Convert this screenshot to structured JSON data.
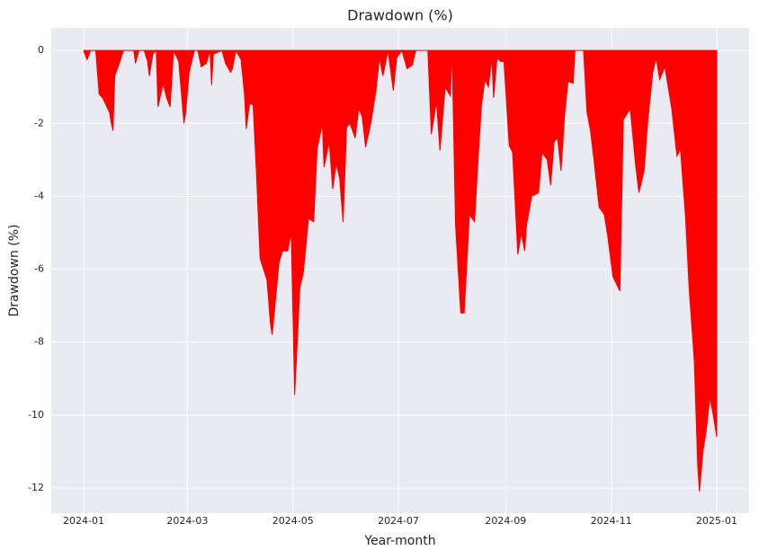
{
  "chart_data": {
    "type": "area",
    "title": "Drawdown (%)",
    "xlabel": "Year-month",
    "ylabel": "Drawdown (%)",
    "color": "#ff0000",
    "grid": true,
    "x": [
      0,
      2,
      4,
      7,
      9,
      11,
      15,
      16,
      17,
      18,
      21,
      23,
      29,
      30,
      32,
      35,
      37,
      38,
      40,
      42,
      43,
      46,
      48,
      50,
      52,
      55,
      58,
      59,
      61,
      64,
      66,
      68,
      71,
      73,
      74,
      75,
      80,
      82,
      85,
      86,
      88,
      91,
      93,
      94,
      96,
      98,
      100,
      102,
      106,
      108,
      109,
      113,
      115,
      118,
      120,
      122,
      123,
      125,
      127,
      130,
      133,
      135,
      138,
      139,
      142,
      144,
      146,
      148,
      150,
      152,
      154,
      157,
      159,
      161,
      163,
      166,
      169,
      171,
      173,
      176,
      179,
      181,
      184,
      187,
      190,
      192,
      199,
      201,
      204,
      206,
      209,
      212,
      213,
      215,
      218,
      220,
      223,
      226,
      228,
      230,
      232,
      234,
      236,
      237,
      239,
      241,
      243,
      246,
      248,
      251,
      253,
      255,
      256,
      259,
      263,
      265,
      268,
      270,
      272,
      274,
      276,
      278,
      280,
      283,
      284,
      289,
      291,
      293,
      295,
      298,
      301,
      303,
      306,
      310,
      312,
      316,
      319,
      321,
      324,
      326,
      329,
      331,
      333,
      336,
      340,
      343,
      345,
      348,
      350,
      353,
      355,
      356,
      358,
      360,
      362,
      364,
      366
    ],
    "values": [
      0,
      -0.25,
      0,
      0,
      -1.2,
      -1.3,
      -1.7,
      -2.0,
      -2.2,
      -0.7,
      -0.3,
      0,
      0,
      -0.35,
      0,
      0,
      -0.3,
      -0.7,
      -0.1,
      0,
      -1.55,
      -0.9,
      -1.3,
      -1.55,
      0,
      -0.3,
      -2.0,
      -1.7,
      -0.6,
      0,
      0,
      -0.45,
      -0.35,
      0,
      -0.95,
      -0.1,
      0,
      -0.35,
      -0.6,
      -0.5,
      0,
      -0.25,
      -1.2,
      -2.15,
      -1.45,
      -1.5,
      -3.45,
      -5.7,
      -6.3,
      -7.5,
      -7.8,
      -5.8,
      -5.5,
      -5.5,
      -5.0,
      -9.45,
      -8.5,
      -6.5,
      -6.1,
      -4.6,
      -4.7,
      -2.7,
      -2.0,
      -3.2,
      -2.5,
      -3.8,
      -3.1,
      -3.5,
      -4.7,
      -2.1,
      -2.0,
      -2.4,
      -1.6,
      -1.8,
      -2.65,
      -2.0,
      -1.1,
      -0.2,
      -0.7,
      0,
      -1.1,
      -0.2,
      0,
      -0.5,
      -0.4,
      0,
      0,
      -2.3,
      -1.4,
      -2.75,
      -1.0,
      -1.25,
      0,
      -4.8,
      -7.2,
      -7.2,
      -4.5,
      -4.7,
      -3.0,
      -1.5,
      -0.8,
      -1.0,
      -0.2,
      -1.3,
      -0.2,
      -0.3,
      -0.3,
      -2.6,
      -2.8,
      -5.6,
      -5.0,
      -5.5,
      -4.8,
      -4.0,
      -3.9,
      -2.8,
      -3.0,
      -3.7,
      -2.5,
      -2.4,
      -3.3,
      -1.8,
      -0.85,
      -0.9,
      0,
      0,
      -1.7,
      -2.2,
      -3.0,
      -4.3,
      -4.5,
      -5.1,
      -6.2,
      -6.6,
      -1.9,
      -1.6,
      -3.1,
      -3.9,
      -3.3,
      -2.0,
      -0.6,
      -0.2,
      -0.8,
      -0.45,
      -1.6,
      -2.9,
      -2.7,
      -4.6,
      -6.5,
      -8.5,
      -11.4,
      -12.1,
      -11.0,
      -10.4,
      -9.5,
      -10.0,
      -10.6
    ],
    "xlim": [
      -18.7,
      384.7
    ],
    "xticks": [
      {
        "value": 0,
        "label": "2024-01"
      },
      {
        "value": 60,
        "label": "2024-03"
      },
      {
        "value": 121,
        "label": "2024-05"
      },
      {
        "value": 182,
        "label": "2024-07"
      },
      {
        "value": 244,
        "label": "2024-09"
      },
      {
        "value": 305,
        "label": "2024-11"
      },
      {
        "value": 366,
        "label": "2025-01"
      }
    ],
    "ylim": [
      -12.69,
      0.62
    ],
    "yticks": [
      0,
      -2,
      -4,
      -6,
      -8,
      -10,
      -12
    ]
  }
}
